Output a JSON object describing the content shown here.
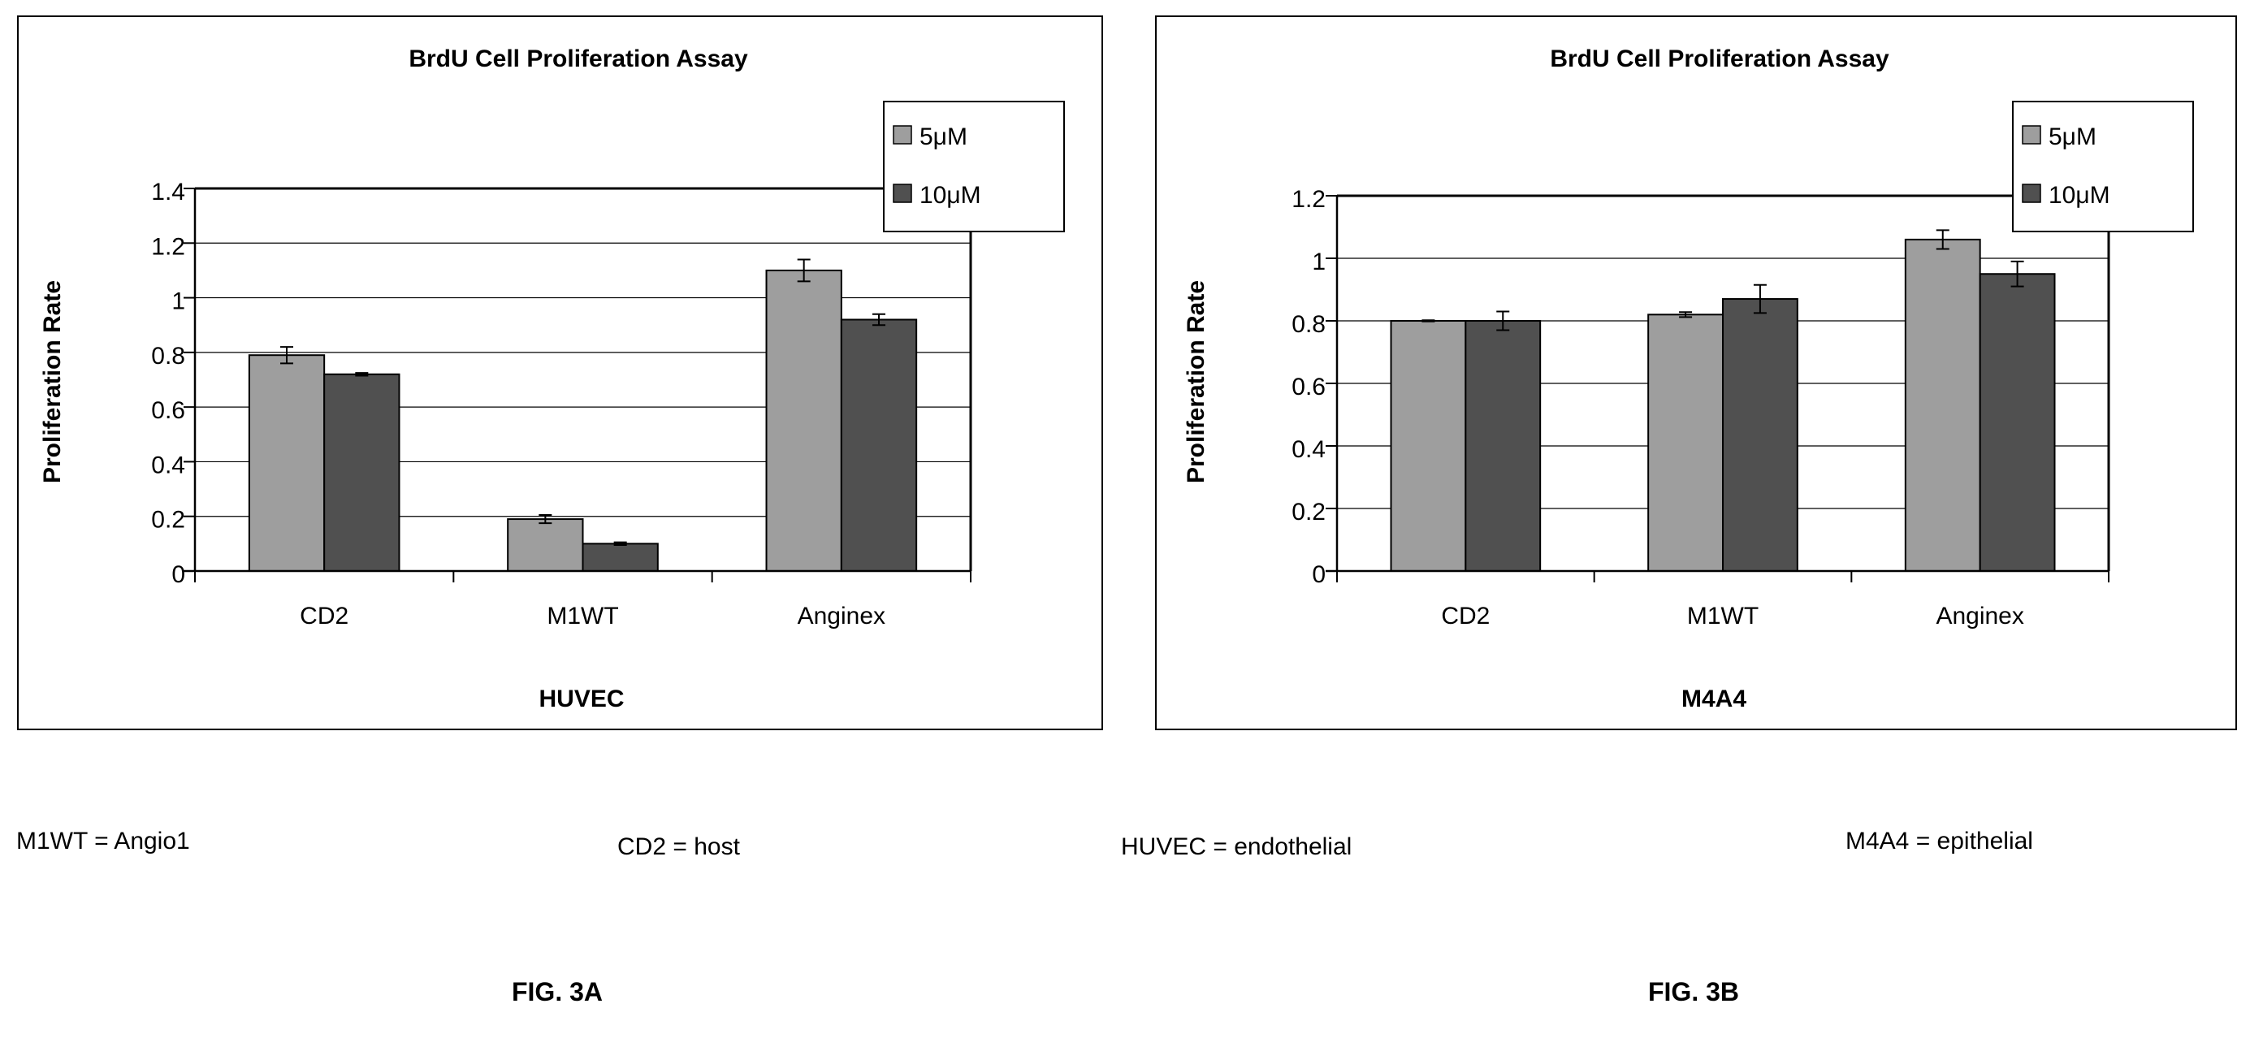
{
  "chart_data": [
    {
      "type": "bar",
      "title": "BrdU Cell Proliferation Assay",
      "xlabel": "HUVEC",
      "ylabel": "Proliferation Rate",
      "categories": [
        "CD2",
        "M1WT",
        "Anginex"
      ],
      "series": [
        {
          "name": "5μM",
          "values": [
            0.79,
            0.19,
            1.1
          ],
          "errors": [
            0.03,
            0.015,
            0.04
          ],
          "color": "#9e9e9e"
        },
        {
          "name": "10μM",
          "values": [
            0.72,
            0.1,
            0.92
          ],
          "errors": [
            0.005,
            0.005,
            0.02
          ],
          "color": "#505050"
        }
      ],
      "ylim": [
        0,
        1.4
      ],
      "yticks": [
        "0",
        "0.2",
        "0.4",
        "0.6",
        "0.8",
        "1",
        "1.2",
        "1.4"
      ],
      "grid": true,
      "legend_position": "top-right",
      "figure_label": "FIG. 3A"
    },
    {
      "type": "bar",
      "title": "BrdU Cell Proliferation Assay",
      "xlabel": "M4A4",
      "ylabel": "Proliferation Rate",
      "categories": [
        "CD2",
        "M1WT",
        "Anginex"
      ],
      "series": [
        {
          "name": "5μM",
          "values": [
            0.8,
            0.82,
            1.06
          ],
          "errors": [
            0.002,
            0.008,
            0.03
          ],
          "color": "#9e9e9e"
        },
        {
          "name": "10μM",
          "values": [
            0.8,
            0.87,
            0.95
          ],
          "errors": [
            0.03,
            0.045,
            0.04
          ],
          "color": "#505050"
        }
      ],
      "ylim": [
        0,
        1.2
      ],
      "yticks": [
        "0",
        "0.2",
        "0.4",
        "0.6",
        "0.8",
        "1",
        "1.2"
      ],
      "grid": true,
      "legend_position": "top-right",
      "figure_label": "FIG. 3B"
    }
  ],
  "notes": [
    "M1WT = Angio1",
    "CD2 = host",
    "HUVEC = endothelial",
    "M4A4 = epithelial"
  ]
}
